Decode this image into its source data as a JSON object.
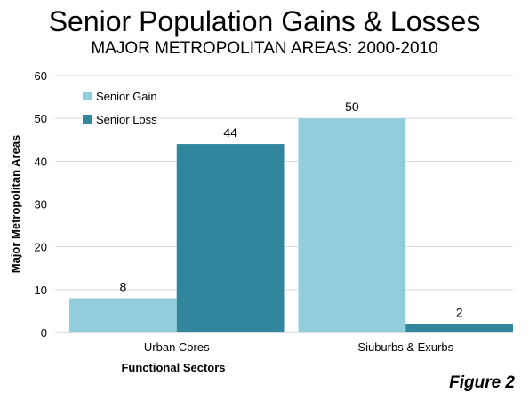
{
  "chart_data": {
    "type": "bar",
    "title": "Senior Population Gains & Losses",
    "subtitle": "MAJOR METROPOLITAN AREAS: 2000-2010",
    "xlabel": "Functional Sectors",
    "ylabel": "Major Metropolitan Areas",
    "categories": [
      "Urban Cores",
      "Siuburbs & Exurbs"
    ],
    "series": [
      {
        "name": "Senior Gain",
        "values": [
          8,
          50
        ],
        "color": "#92cddc"
      },
      {
        "name": "Senior Loss",
        "values": [
          44,
          2
        ],
        "color": "#31859c"
      }
    ],
    "ylim": [
      0,
      60
    ],
    "yticks": [
      0,
      10,
      20,
      30,
      40,
      50,
      60
    ],
    "grid": "horizontal",
    "legend": "top-left",
    "footnote": "Figure 2"
  }
}
